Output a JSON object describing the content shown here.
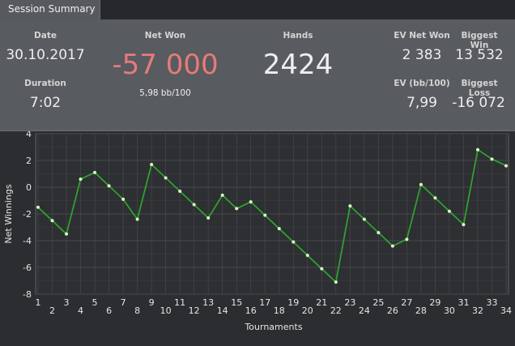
{
  "tab": {
    "label": "Session Summary"
  },
  "summary": {
    "date_label": "Date",
    "date_value": "30.10.2017",
    "duration_label": "Duration",
    "duration_value": "7:02",
    "net_won_label": "Net Won",
    "net_won_value": "-57 000",
    "net_won_bb": "5,98 bb/100",
    "hands_label": "Hands",
    "hands_value": "2424",
    "ev_net_won_label": "EV Net Won",
    "ev_net_won_value": "2 383",
    "biggest_win_label": "Biggest Win",
    "biggest_win_value": "13 532",
    "ev_bb_label": "EV (bb/100)",
    "ev_bb_value": "7,99",
    "biggest_loss_label": "Biggest Loss",
    "biggest_loss_value": "-16 072"
  },
  "colors": {
    "negative": "#e87a7a",
    "line": "#2ea12e",
    "point": "#d8f5c8",
    "grid": "#47494c"
  },
  "chart_data": {
    "type": "line",
    "xlabel": "Tournaments",
    "ylabel": "Net Winnings",
    "x": [
      1,
      2,
      3,
      4,
      5,
      6,
      7,
      8,
      9,
      10,
      11,
      12,
      13,
      14,
      15,
      16,
      17,
      18,
      19,
      20,
      21,
      22,
      23,
      24,
      25,
      26,
      27,
      28,
      29,
      30,
      31,
      32,
      33,
      34
    ],
    "series": [
      {
        "values": [
          -1.5,
          -2.5,
          -3.5,
          0.6,
          1.1,
          0.1,
          -0.9,
          -2.4,
          1.7,
          0.7,
          -0.3,
          -1.3,
          -2.3,
          -0.6,
          -1.6,
          -1.1,
          -2.1,
          -3.1,
          -4.1,
          -5.1,
          -6.1,
          -7.1,
          -1.4,
          -2.4,
          -3.4,
          -4.4,
          -3.9,
          0.2,
          -0.8,
          -1.8,
          -2.8,
          2.8,
          2.1,
          1.6
        ]
      }
    ],
    "xlim": [
      1,
      34
    ],
    "ylim": [
      -8,
      4
    ],
    "yticks": [
      4,
      2,
      0,
      -2,
      -4,
      -6,
      -8
    ],
    "grid": true
  }
}
